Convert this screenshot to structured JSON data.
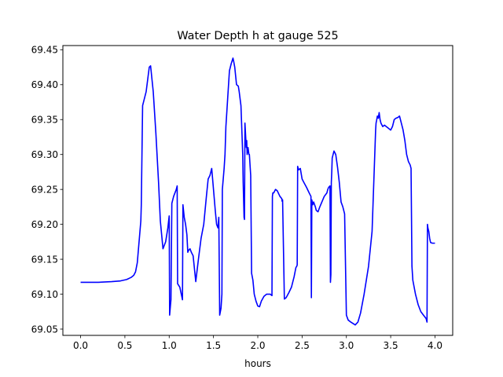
{
  "colors": {
    "series": "#0000ff",
    "axis": "#000000",
    "background": "#ffffff"
  },
  "chart_data": {
    "type": "line",
    "title": "Water Depth h at gauge 525",
    "xlabel": "hours",
    "ylabel": "",
    "xlim": [
      -0.2,
      4.2
    ],
    "ylim": [
      69.041,
      69.456
    ],
    "xticks": [
      0.0,
      0.5,
      1.0,
      1.5,
      2.0,
      2.5,
      3.0,
      3.5,
      4.0
    ],
    "xtick_labels": [
      "0.0",
      "0.5",
      "1.0",
      "1.5",
      "2.0",
      "2.5",
      "3.0",
      "3.5",
      "4.0"
    ],
    "yticks": [
      69.05,
      69.1,
      69.15,
      69.2,
      69.25,
      69.3,
      69.35,
      69.4,
      69.45
    ],
    "ytick_labels": [
      "69.05",
      "69.10",
      "69.15",
      "69.20",
      "69.25",
      "69.30",
      "69.35",
      "69.40",
      "69.45"
    ],
    "grid": false,
    "legend": "none",
    "series": [
      {
        "color": "#0000ff",
        "x": [
          0.0,
          0.2,
          0.35,
          0.45,
          0.52,
          0.57,
          0.6,
          0.62,
          0.64,
          0.66,
          0.68,
          0.685,
          0.7,
          0.72,
          0.74,
          0.76,
          0.775,
          0.79,
          0.82,
          0.85,
          0.88,
          0.9,
          0.93,
          0.96,
          0.985,
          1.0,
          1.005,
          1.015,
          1.02,
          1.03,
          1.05,
          1.08,
          1.09,
          1.095,
          1.12,
          1.15,
          1.155,
          1.17,
          1.185,
          1.2,
          1.21,
          1.22,
          1.235,
          1.25,
          1.27,
          1.3,
          1.33,
          1.36,
          1.39,
          1.42,
          1.44,
          1.46,
          1.48,
          1.5,
          1.52,
          1.535,
          1.55,
          1.56,
          1.57,
          1.585,
          1.595,
          1.6,
          1.62,
          1.63,
          1.64,
          1.66,
          1.68,
          1.7,
          1.72,
          1.73,
          1.74,
          1.76,
          1.78,
          1.79,
          1.81,
          1.83,
          1.835,
          1.845,
          1.85,
          1.855,
          1.87,
          1.875,
          1.88,
          1.89,
          1.9,
          1.905,
          1.92,
          1.93,
          1.945,
          1.96,
          1.98,
          2.0,
          2.02,
          2.04,
          2.07,
          2.1,
          2.14,
          2.16,
          2.165,
          2.17,
          2.18,
          2.2,
          2.22,
          2.25,
          2.27,
          2.275,
          2.28,
          2.3,
          2.32,
          2.35,
          2.38,
          2.41,
          2.43,
          2.44,
          2.445,
          2.45,
          2.46,
          2.48,
          2.5,
          2.52,
          2.55,
          2.58,
          2.6,
          2.605,
          2.61,
          2.62,
          2.63,
          2.65,
          2.66,
          2.68,
          2.7,
          2.75,
          2.78,
          2.79,
          2.8,
          2.815,
          2.82,
          2.825,
          2.83,
          2.835,
          2.84,
          2.86,
          2.88,
          2.9,
          2.92,
          2.94,
          2.96,
          2.98,
          3.0,
          3.02,
          3.05,
          3.1,
          3.13,
          3.16,
          3.2,
          3.25,
          3.29,
          3.33,
          3.335,
          3.34,
          3.35,
          3.36,
          3.37,
          3.38,
          3.39,
          3.41,
          3.43,
          3.45,
          3.47,
          3.5,
          3.52,
          3.54,
          3.56,
          3.58,
          3.6,
          3.62,
          3.64,
          3.66,
          3.68,
          3.7,
          3.72,
          3.73,
          3.74,
          3.75,
          3.78,
          3.81,
          3.84,
          3.87,
          3.9,
          3.91,
          3.915,
          3.92,
          3.93,
          3.94,
          3.95,
          3.97,
          4.0
        ],
        "y": [
          69.117,
          69.117,
          69.118,
          69.119,
          69.121,
          69.124,
          69.127,
          69.132,
          69.145,
          69.175,
          69.205,
          69.227,
          69.37,
          69.38,
          69.39,
          69.41,
          69.425,
          69.427,
          69.39,
          69.33,
          69.26,
          69.205,
          69.165,
          69.175,
          69.195,
          69.212,
          69.07,
          69.085,
          69.092,
          69.23,
          69.24,
          69.25,
          69.255,
          69.115,
          69.11,
          69.092,
          69.228,
          69.21,
          69.2,
          69.185,
          69.16,
          69.163,
          69.165,
          69.16,
          69.155,
          69.118,
          69.15,
          69.18,
          69.2,
          69.24,
          69.265,
          69.27,
          69.28,
          69.25,
          69.22,
          69.2,
          69.195,
          69.21,
          69.07,
          69.08,
          69.1,
          69.25,
          69.28,
          69.3,
          69.34,
          69.38,
          69.42,
          69.43,
          69.438,
          69.432,
          69.425,
          69.4,
          69.398,
          69.39,
          69.37,
          69.3,
          69.26,
          69.21,
          69.207,
          69.345,
          69.31,
          69.32,
          69.3,
          69.31,
          69.3,
          69.3,
          69.27,
          69.13,
          69.12,
          69.1,
          69.09,
          69.083,
          69.082,
          69.09,
          69.097,
          69.1,
          69.1,
          69.098,
          69.24,
          69.245,
          69.245,
          69.25,
          69.248,
          69.24,
          69.237,
          69.233,
          69.235,
          69.093,
          69.095,
          69.102,
          69.11,
          69.125,
          69.138,
          69.14,
          69.142,
          69.283,
          69.278,
          69.28,
          69.265,
          69.26,
          69.253,
          69.245,
          69.24,
          69.095,
          69.235,
          69.228,
          69.232,
          69.225,
          69.22,
          69.218,
          69.225,
          69.24,
          69.245,
          69.25,
          69.253,
          69.255,
          69.117,
          69.128,
          69.26,
          69.275,
          69.295,
          69.305,
          69.3,
          69.282,
          69.26,
          69.232,
          69.225,
          69.215,
          69.07,
          69.063,
          69.06,
          69.056,
          69.06,
          69.073,
          69.1,
          69.14,
          69.19,
          69.335,
          69.345,
          69.348,
          69.355,
          69.352,
          69.36,
          69.35,
          69.345,
          69.34,
          69.342,
          69.34,
          69.338,
          69.335,
          69.34,
          69.35,
          69.352,
          69.353,
          69.355,
          69.345,
          69.335,
          69.32,
          69.3,
          69.29,
          69.285,
          69.28,
          69.14,
          69.12,
          69.1,
          69.085,
          69.075,
          69.07,
          69.065,
          69.06,
          69.2,
          69.195,
          69.19,
          69.18,
          69.174,
          69.173,
          69.173
        ]
      }
    ]
  }
}
